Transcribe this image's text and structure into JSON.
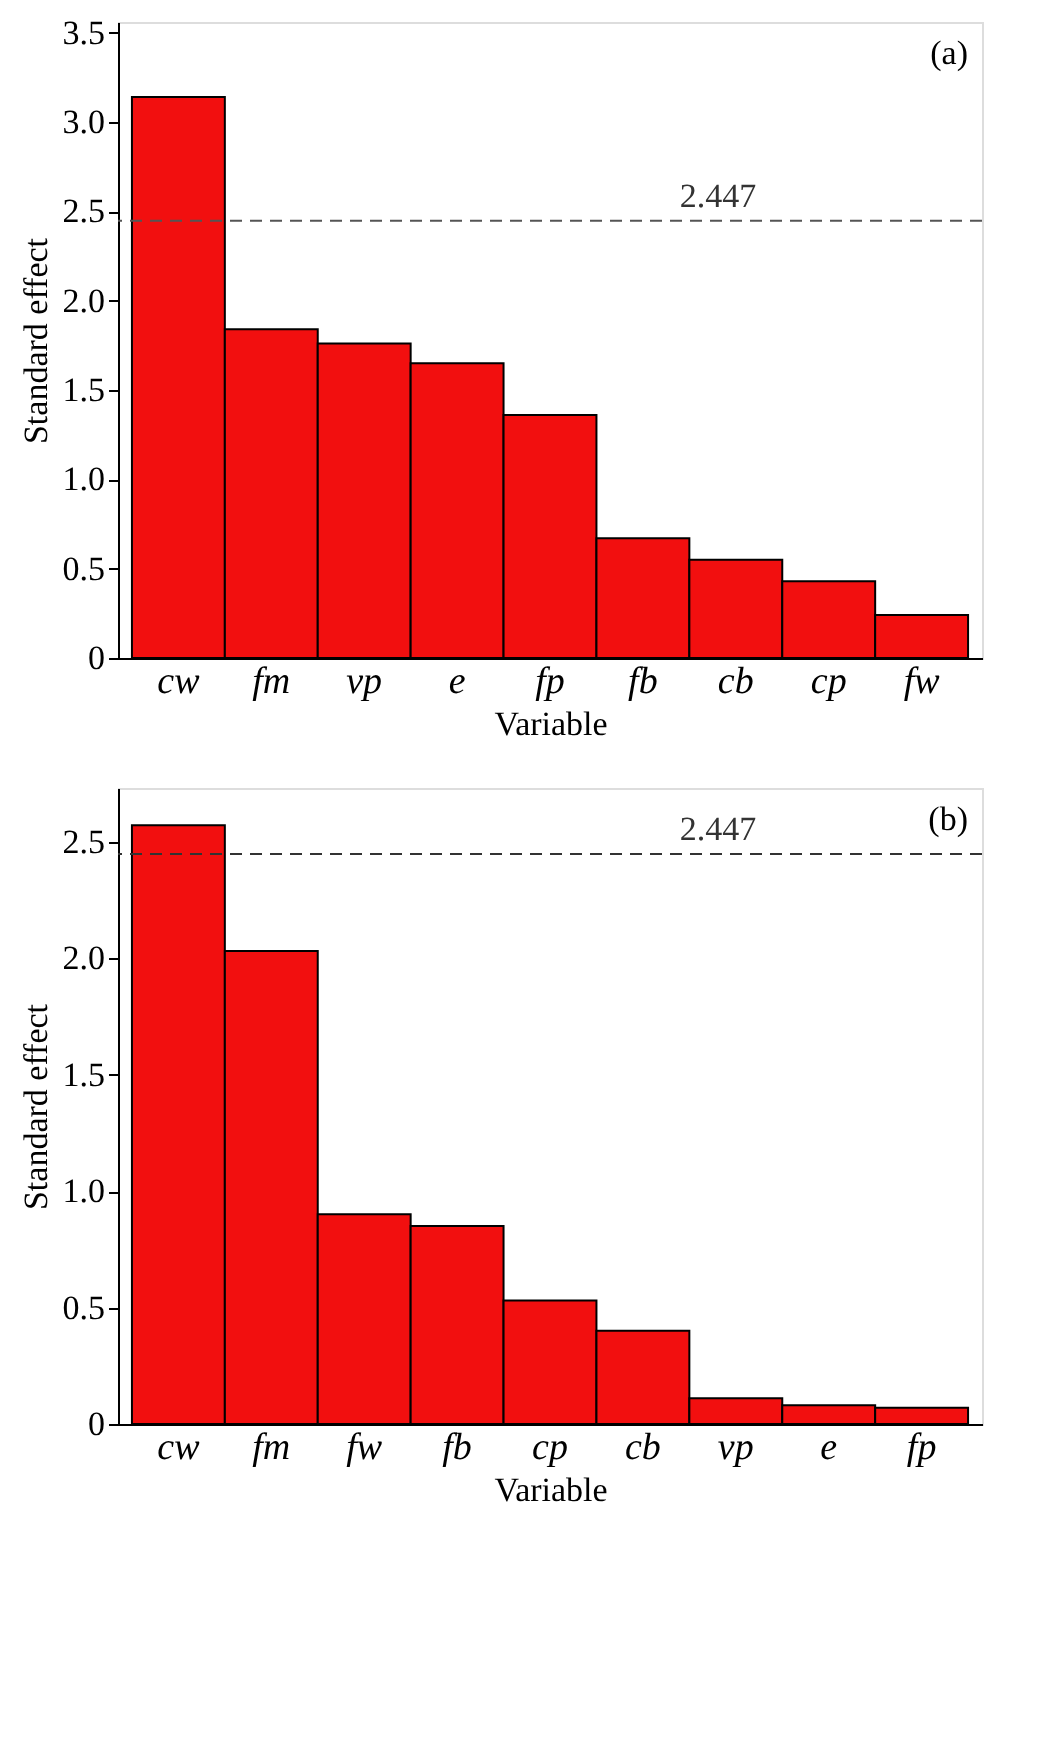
{
  "chart_data": [
    {
      "type": "bar",
      "xlabel": "Variable",
      "ylabel": "Standard effect",
      "categories": [
        "cw",
        "fm",
        "vp",
        "e",
        "fp",
        "fb",
        "cb",
        "cp",
        "fw"
      ],
      "values": [
        3.14,
        1.84,
        1.76,
        1.65,
        1.36,
        0.67,
        0.55,
        0.43,
        0.24
      ],
      "color": "#f20f0f",
      "ylim": [
        0,
        3.56
      ],
      "yticks": [
        {
          "value": 0,
          "label": "0"
        },
        0.5,
        {
          "value": 1,
          "label": "1.0"
        },
        1.5,
        {
          "value": 2,
          "label": "2.0"
        },
        2.5,
        {
          "value": 3,
          "label": "3.0"
        },
        3.5
      ],
      "ref_lines": [
        {
          "axis": "y",
          "value": 2.447,
          "label": "2.447",
          "color": "#555555",
          "line_style": "dashed"
        }
      ],
      "annotations": [
        "(a)"
      ],
      "grid": false
    },
    {
      "type": "bar",
      "xlabel": "Variable",
      "ylabel": "Standard effect",
      "categories": [
        "cw",
        "fm",
        "fw",
        "fb",
        "cp",
        "cb",
        "vp",
        "e",
        "fp"
      ],
      "values": [
        2.57,
        2.03,
        0.9,
        0.85,
        0.53,
        0.4,
        0.11,
        0.08,
        0.07
      ],
      "color": "#f20f0f",
      "ylim": [
        0,
        2.73
      ],
      "yticks": [
        {
          "value": 0,
          "label": "0"
        },
        0.5,
        {
          "value": 1,
          "label": "1.0"
        },
        1.5,
        {
          "value": 2,
          "label": "2.0"
        },
        2.5
      ],
      "ref_lines": [
        {
          "axis": "y",
          "value": 2.447,
          "label": "2.447",
          "color": "#333333",
          "line_style": "dashed"
        }
      ],
      "annotations": [
        "(b)"
      ],
      "grid": false
    }
  ]
}
